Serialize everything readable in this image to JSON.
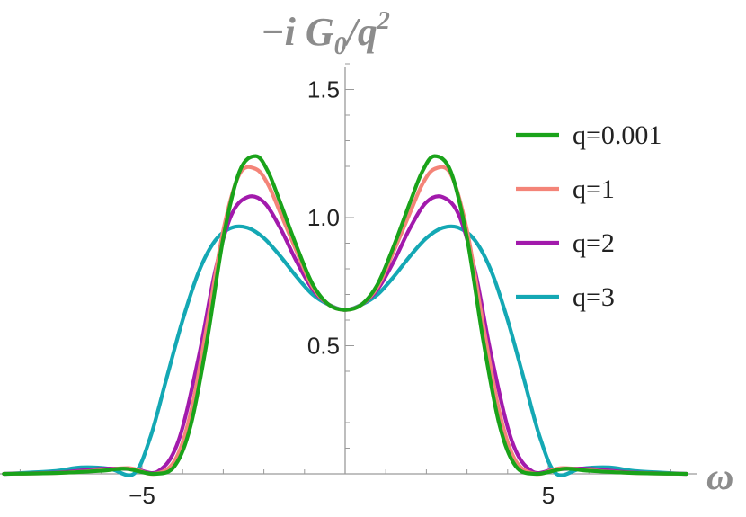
{
  "chart_data": {
    "type": "line",
    "title_parts": {
      "prefix": "−i G",
      "sub": "0",
      "mid": "/q",
      "sup": "2"
    },
    "xlabel": "ω",
    "ylabel": "",
    "xlim": [
      -8.4,
      8.4
    ],
    "ylim": [
      0,
      1.6
    ],
    "x_ticks": [
      -5,
      5
    ],
    "x_tick_labels": [
      "−5",
      "5"
    ],
    "y_ticks": [
      0.5,
      1.0,
      1.5
    ],
    "y_tick_labels": [
      "0.5",
      "1.0",
      "1.5"
    ],
    "grid": false,
    "legend_position": "top-right",
    "series": [
      {
        "name": "q=0.001",
        "color": "#1aa31a",
        "x": [
          -8.4,
          -7,
          -6,
          -5.4,
          -4.7,
          -4.2,
          -3.8,
          -3.4,
          -3.0,
          -2.6,
          -2.2,
          -1.9,
          -1.6,
          -1.2,
          -0.8,
          -0.4,
          0,
          0.4,
          0.8,
          1.2,
          1.6,
          1.9,
          2.2,
          2.6,
          3.0,
          3.4,
          3.8,
          4.2,
          4.7,
          5.4,
          6,
          7,
          8.4
        ],
        "y": [
          0,
          0.004,
          0.012,
          0.02,
          0,
          0.03,
          0.19,
          0.52,
          0.92,
          1.18,
          1.24,
          1.18,
          1.06,
          0.89,
          0.74,
          0.66,
          0.64,
          0.66,
          0.74,
          0.89,
          1.06,
          1.18,
          1.24,
          1.18,
          0.92,
          0.52,
          0.19,
          0.03,
          0,
          0.02,
          0.012,
          0.004,
          0
        ]
      },
      {
        "name": "q=1",
        "color": "#f48478",
        "x": [
          -8.4,
          -7,
          -6,
          -5.3,
          -4.7,
          -4.2,
          -3.8,
          -3.4,
          -3.0,
          -2.6,
          -2.2,
          -1.9,
          -1.6,
          -1.2,
          -0.8,
          -0.4,
          0,
          0.4,
          0.8,
          1.2,
          1.6,
          1.9,
          2.2,
          2.6,
          3.0,
          3.4,
          3.8,
          4.2,
          4.7,
          5.3,
          6,
          7,
          8.4
        ],
        "y": [
          0,
          0.004,
          0.014,
          0.022,
          0,
          0.05,
          0.24,
          0.58,
          0.95,
          1.17,
          1.19,
          1.13,
          1.02,
          0.87,
          0.73,
          0.66,
          0.64,
          0.66,
          0.73,
          0.87,
          1.02,
          1.13,
          1.19,
          1.17,
          0.95,
          0.58,
          0.24,
          0.05,
          0,
          0.022,
          0.014,
          0.004,
          0
        ]
      },
      {
        "name": "q=2",
        "color": "#a21aac",
        "x": [
          -8.4,
          -7,
          -6,
          -5.2,
          -4.6,
          -4.1,
          -3.6,
          -3.2,
          -2.8,
          -2.4,
          -2.0,
          -1.6,
          -1.2,
          -0.8,
          -0.4,
          0,
          0.4,
          0.8,
          1.2,
          1.6,
          2.0,
          2.4,
          2.8,
          3.2,
          3.6,
          4.1,
          4.6,
          5.2,
          6,
          7,
          8.4
        ],
        "y": [
          0,
          0.006,
          0.02,
          0.018,
          0.01,
          0.13,
          0.46,
          0.79,
          1.01,
          1.08,
          1.06,
          0.96,
          0.83,
          0.72,
          0.66,
          0.64,
          0.66,
          0.72,
          0.83,
          0.96,
          1.06,
          1.08,
          1.01,
          0.79,
          0.46,
          0.13,
          0.01,
          0.018,
          0.02,
          0.006,
          0
        ]
      },
      {
        "name": "q=3",
        "color": "#14a8b4",
        "x": [
          -8.4,
          -7.2,
          -6.5,
          -5.8,
          -5.2,
          -4.8,
          -4.4,
          -4.0,
          -3.6,
          -3.2,
          -2.8,
          -2.4,
          -2.0,
          -1.6,
          -1.2,
          -0.8,
          -0.4,
          0,
          0.4,
          0.8,
          1.2,
          1.6,
          2.0,
          2.4,
          2.8,
          3.2,
          3.6,
          4.0,
          4.4,
          4.8,
          5.2,
          5.8,
          6.5,
          7.2,
          8.4
        ],
        "y": [
          0,
          0.01,
          0.025,
          0.02,
          0.0,
          0.14,
          0.37,
          0.6,
          0.79,
          0.91,
          0.96,
          0.96,
          0.92,
          0.85,
          0.77,
          0.7,
          0.66,
          0.64,
          0.66,
          0.7,
          0.77,
          0.85,
          0.92,
          0.96,
          0.96,
          0.91,
          0.79,
          0.6,
          0.37,
          0.14,
          0.0,
          0.02,
          0.025,
          0.01,
          0
        ]
      }
    ]
  }
}
